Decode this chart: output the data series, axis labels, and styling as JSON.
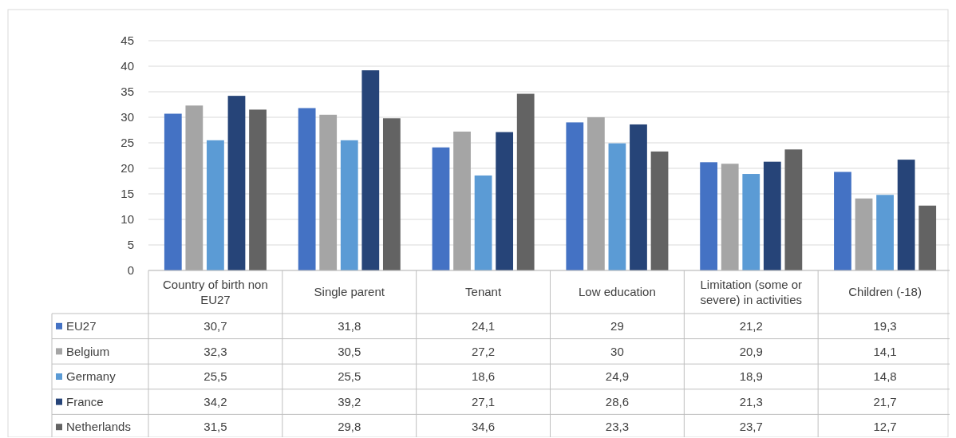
{
  "chart_data": {
    "type": "bar",
    "categories": [
      "Country of birth non EU27",
      "Single parent",
      "Tenant",
      "Low education",
      "Limitation (some or severe) in activities",
      "Children (-18)"
    ],
    "series": [
      {
        "name": "EU27",
        "color": "#4472c4",
        "values": [
          30.7,
          31.8,
          24.1,
          29,
          21.2,
          19.3
        ],
        "value_labels": [
          "30,7",
          "31,8",
          "24,1",
          "29",
          "21,2",
          "19,3"
        ]
      },
      {
        "name": "Belgium",
        "color": "#a5a5a5",
        "values": [
          32.3,
          30.5,
          27.2,
          30,
          20.9,
          14.1
        ],
        "value_labels": [
          "32,3",
          "30,5",
          "27,2",
          "30",
          "20,9",
          "14,1"
        ]
      },
      {
        "name": "Germany",
        "color": "#5b9bd5",
        "values": [
          25.5,
          25.5,
          18.6,
          24.9,
          18.9,
          14.8
        ],
        "value_labels": [
          "25,5",
          "25,5",
          "18,6",
          "24,9",
          "18,9",
          "14,8"
        ]
      },
      {
        "name": "France",
        "color": "#264478",
        "values": [
          34.2,
          39.2,
          27.1,
          28.6,
          21.3,
          21.7
        ],
        "value_labels": [
          "34,2",
          "39,2",
          "27,1",
          "28,6",
          "21,3",
          "21,7"
        ]
      },
      {
        "name": "Netherlands",
        "color": "#636363",
        "values": [
          31.5,
          29.8,
          34.6,
          23.3,
          23.7,
          12.7
        ],
        "value_labels": [
          "31,5",
          "29,8",
          "34,6",
          "23,3",
          "23,7",
          "12,7"
        ]
      }
    ],
    "ylim": [
      0,
      45
    ],
    "yticks": [
      0,
      5,
      10,
      15,
      20,
      25,
      30,
      35,
      40,
      45
    ],
    "grid": "y",
    "legend": "bottom"
  }
}
